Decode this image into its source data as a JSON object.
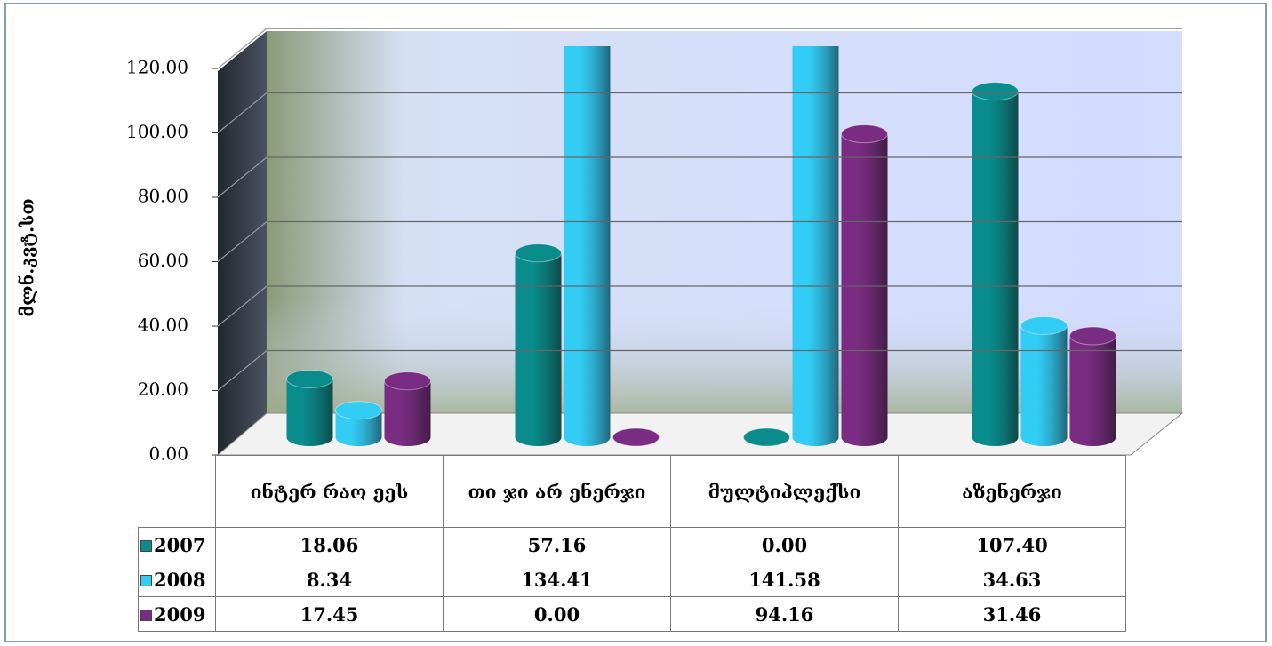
{
  "chart_data": {
    "type": "bar3d",
    "y_label": "მლნ.კვტ.სთ",
    "categories": [
      "ინტერ რაო ეეს",
      "თი ჯი არ ენერჯი",
      "მულტიპლექსი",
      "აზენერჯი"
    ],
    "series": [
      {
        "name": "2007",
        "color": "#0a8c8c",
        "values": [
          18.06,
          57.16,
          0.0,
          107.4
        ],
        "value_labels": [
          "18.06",
          "57.16",
          "0.00",
          "107.40"
        ]
      },
      {
        "name": "2008",
        "color": "#33ccf5",
        "values": [
          8.34,
          134.41,
          141.58,
          34.63
        ],
        "value_labels": [
          "8.34",
          "134.41",
          "141.58",
          "34.63"
        ]
      },
      {
        "name": "2009",
        "color": "#7a2c82",
        "values": [
          17.45,
          0.0,
          94.16,
          31.46
        ],
        "value_labels": [
          "17.45",
          "0.00",
          "94.16",
          "31.46"
        ]
      }
    ],
    "ylim": [
      0,
      120
    ],
    "yticks": [
      {
        "value": 0,
        "label": "0.00"
      },
      {
        "value": 20,
        "label": "20.00"
      },
      {
        "value": 40,
        "label": "40.00"
      },
      {
        "value": 60,
        "label": "60.00"
      },
      {
        "value": 80,
        "label": "80.00"
      },
      {
        "value": 100,
        "label": "100.00"
      },
      {
        "value": 120,
        "label": "120.00"
      }
    ],
    "grid": true
  }
}
